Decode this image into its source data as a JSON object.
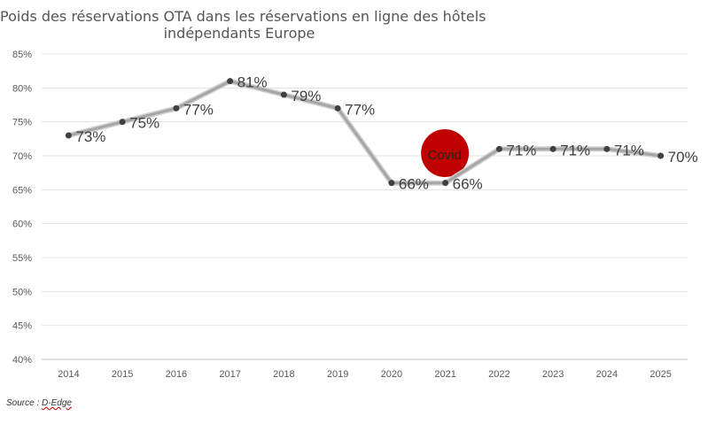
{
  "title_line1": "Poids des réservations OTA dans les réservations en ligne des hôtels",
  "title_line2": "indépendants Europe",
  "source_prefix": "Source : ",
  "source_name": "D-Edge",
  "chart_data": {
    "type": "line",
    "title": "Poids des réservations OTA dans les réservations en ligne des hôtels indépendants Europe",
    "categories": [
      "2014",
      "2015",
      "2016",
      "2017",
      "2018",
      "2019",
      "2020",
      "2021",
      "2022",
      "2023",
      "2024",
      "2025"
    ],
    "series": [
      {
        "values": [
          73,
          75,
          77,
          81,
          79,
          77,
          66,
          66,
          71,
          71,
          71,
          70
        ],
        "labels": [
          "73%",
          "75%",
          "77%",
          "81%",
          "79%",
          "77%",
          "66%",
          "66%",
          "71%",
          "71%",
          "71%",
          "70%"
        ]
      }
    ],
    "ylim": [
      40,
      85
    ],
    "yticks": [
      "40%",
      "45%",
      "50%",
      "55%",
      "60%",
      "65%",
      "70%",
      "75%",
      "80%",
      "85%"
    ],
    "grid": true,
    "annotation": {
      "text": "Covid",
      "category": "2021",
      "color": "#c00000"
    },
    "line_color": "#a6a6a6",
    "marker_color": "#404040"
  }
}
